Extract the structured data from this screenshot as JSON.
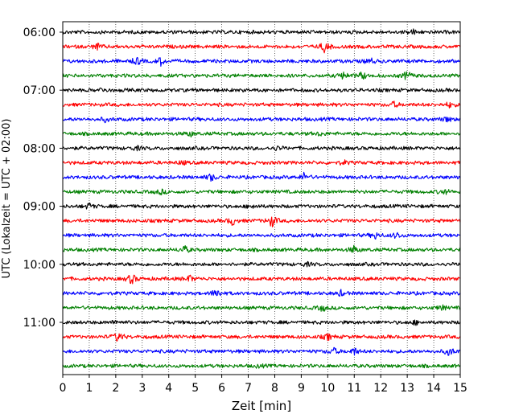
{
  "chart_data": {
    "type": "line",
    "title": "",
    "xlabel": "Zeit  [min]",
    "ylabel": "UTC (Lokalzeit = UTC + 02:00)",
    "xlim": [
      0,
      15
    ],
    "x_ticks": [
      0,
      1,
      2,
      3,
      4,
      5,
      6,
      7,
      8,
      9,
      10,
      11,
      12,
      13,
      14,
      15
    ],
    "x_tick_labels": [
      "0",
      "1",
      "2",
      "3",
      "4",
      "5",
      "6",
      "7",
      "8",
      "9",
      "10",
      "11",
      "12",
      "13",
      "14",
      "15"
    ],
    "y_tick_labels": [
      "06:00",
      "07:00",
      "08:00",
      "09:00",
      "10:00",
      "11:00"
    ],
    "grid": "vertical dotted lines at each minute",
    "trace_interval_minutes": 15,
    "trace_colors": [
      "#000000",
      "#ff0000",
      "#0000ff",
      "#008000"
    ],
    "series": [
      {
        "start": "06:00",
        "color": "#000000",
        "events": [
          [
            13.2,
            0.4
          ]
        ]
      },
      {
        "start": "06:15",
        "color": "#ff0000",
        "events": [
          [
            1.3,
            0.5
          ],
          [
            9.9,
            1.0
          ]
        ]
      },
      {
        "start": "06:30",
        "color": "#0000ff",
        "events": [
          [
            2.8,
            0.6
          ],
          [
            3.7,
            0.6
          ],
          [
            11.6,
            0.5
          ]
        ]
      },
      {
        "start": "06:45",
        "color": "#008000",
        "events": [
          [
            10.6,
            0.6
          ],
          [
            11.3,
            0.6
          ],
          [
            13.0,
            0.8
          ]
        ]
      },
      {
        "start": "07:00",
        "color": "#000000",
        "events": [
          [
            1.5,
            0.3
          ]
        ]
      },
      {
        "start": "07:15",
        "color": "#ff0000",
        "events": [
          [
            12.5,
            0.4
          ],
          [
            14.6,
            0.4
          ]
        ]
      },
      {
        "start": "07:30",
        "color": "#0000ff",
        "events": [
          [
            1.6,
            0.3
          ],
          [
            14.5,
            0.4
          ]
        ]
      },
      {
        "start": "07:45",
        "color": "#008000",
        "events": [
          [
            4.8,
            0.4
          ],
          [
            9.7,
            0.3
          ]
        ]
      },
      {
        "start": "08:00",
        "color": "#000000",
        "events": [
          [
            2.8,
            0.3
          ],
          [
            8.1,
            0.3
          ]
        ]
      },
      {
        "start": "08:15",
        "color": "#ff0000",
        "events": [
          [
            4.5,
            0.3
          ],
          [
            10.6,
            0.3
          ]
        ]
      },
      {
        "start": "08:30",
        "color": "#0000ff",
        "events": [
          [
            5.6,
            0.6
          ],
          [
            9.1,
            0.6
          ]
        ]
      },
      {
        "start": "08:45",
        "color": "#008000",
        "events": [
          [
            3.7,
            0.4
          ],
          [
            14.4,
            0.4
          ]
        ]
      },
      {
        "start": "09:00",
        "color": "#000000",
        "events": [
          [
            1.0,
            0.5
          ],
          [
            7.2,
            0.3
          ]
        ]
      },
      {
        "start": "09:15",
        "color": "#ff0000",
        "events": [
          [
            6.4,
            0.7
          ],
          [
            7.9,
            1.0
          ]
        ]
      },
      {
        "start": "09:30",
        "color": "#0000ff",
        "events": [
          [
            11.8,
            0.5
          ],
          [
            12.6,
            0.5
          ]
        ]
      },
      {
        "start": "09:45",
        "color": "#008000",
        "events": [
          [
            4.6,
            0.6
          ],
          [
            11.0,
            0.6
          ]
        ]
      },
      {
        "start": "10:00",
        "color": "#000000",
        "events": [
          [
            9.2,
            0.3
          ]
        ]
      },
      {
        "start": "10:15",
        "color": "#ff0000",
        "events": [
          [
            2.6,
            0.9
          ],
          [
            4.8,
            0.5
          ]
        ]
      },
      {
        "start": "10:30",
        "color": "#0000ff",
        "events": [
          [
            5.8,
            0.8
          ],
          [
            10.5,
            0.4
          ]
        ]
      },
      {
        "start": "10:45",
        "color": "#008000",
        "events": [
          [
            9.8,
            0.5
          ],
          [
            14.3,
            0.4
          ]
        ]
      },
      {
        "start": "11:00",
        "color": "#000000",
        "events": [
          [
            2.0,
            0.3
          ],
          [
            13.3,
            0.3
          ]
        ]
      },
      {
        "start": "11:15",
        "color": "#ff0000",
        "events": [
          [
            2.1,
            0.9
          ],
          [
            10.0,
            0.5
          ]
        ]
      },
      {
        "start": "11:30",
        "color": "#0000ff",
        "events": [
          [
            10.2,
            0.6
          ],
          [
            11.0,
            0.6
          ],
          [
            14.6,
            0.7
          ]
        ]
      },
      {
        "start": "11:45",
        "color": "#008000",
        "events": [
          [
            7.4,
            0.2
          ]
        ]
      }
    ]
  }
}
